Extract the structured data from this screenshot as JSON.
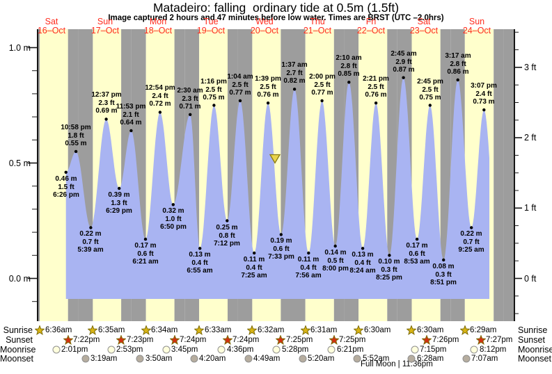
{
  "title": "Matadeiro: falling  ordinary tide at 0.5m (1.5ft)",
  "subtitle": "Image captured 2 hours and 47 minutes before low water. Times are BRST (UTC –2.0hrs)",
  "chart_data": {
    "type": "area",
    "title": "Matadeiro: falling  ordinary tide at 0.5m (1.5ft)",
    "x_categories": [
      {
        "dow": "Sat",
        "date": "16–Oct"
      },
      {
        "dow": "Sun",
        "date": "17–Oct"
      },
      {
        "dow": "Mon",
        "date": "18–Oct"
      },
      {
        "dow": "Tue",
        "date": "19–Oct"
      },
      {
        "dow": "Wed",
        "date": "20–Oct"
      },
      {
        "dow": "Thu",
        "date": "21–Oct"
      },
      {
        "dow": "Fri",
        "date": "22–Oct"
      },
      {
        "dow": "Sat",
        "date": "23–Oct"
      },
      {
        "dow": "Sun",
        "date": "24–Oct"
      }
    ],
    "y_axis_left": {
      "unit": "m",
      "tick_labels": [
        "1.0 m",
        "0.5 m",
        "0.0 m"
      ],
      "tick_values_m": [
        1.0,
        0.5,
        0.0
      ]
    },
    "y_axis_right": {
      "unit": "ft",
      "tick_labels": [
        "3 ft",
        "2 ft",
        "1 ft",
        "0 ft"
      ],
      "tick_values_ft": [
        3,
        2,
        1,
        0
      ]
    },
    "area_color": "#a9b4f2",
    "day_color": "#ffffcc",
    "night_color": "#9d9d9d",
    "tide_events": [
      {
        "day": 0,
        "time": "6:26 pm",
        "height_m": 0.46,
        "height_ft": 1.5,
        "type": "start"
      },
      {
        "day": 0,
        "time": "10:58 pm",
        "height_m": 0.55,
        "height_ft": 1.8,
        "type": "high"
      },
      {
        "day": 1,
        "time": "5:39 am",
        "height_m": 0.22,
        "height_ft": 0.7,
        "type": "low"
      },
      {
        "day": 1,
        "time": "12:37 pm",
        "height_m": 0.69,
        "height_ft": 2.3,
        "type": "high"
      },
      {
        "day": 1,
        "time": "6:29 pm",
        "height_m": 0.39,
        "height_ft": 1.3,
        "type": "low"
      },
      {
        "day": 1,
        "time": "11:53 pm",
        "height_m": 0.64,
        "height_ft": 2.1,
        "type": "high"
      },
      {
        "day": 2,
        "time": "6:21 am",
        "height_m": 0.17,
        "height_ft": 0.6,
        "type": "low"
      },
      {
        "day": 2,
        "time": "12:54 pm",
        "height_m": 0.72,
        "height_ft": 2.4,
        "type": "high"
      },
      {
        "day": 2,
        "time": "6:50 pm",
        "height_m": 0.32,
        "height_ft": 1.0,
        "type": "low"
      },
      {
        "day": 3,
        "time": "2:30 am",
        "height_m": 0.71,
        "height_ft": 2.3,
        "type": "high"
      },
      {
        "day": 3,
        "time": "6:55 am",
        "height_m": 0.13,
        "height_ft": 0.4,
        "type": "low"
      },
      {
        "day": 3,
        "time": "1:16 pm",
        "height_m": 0.75,
        "height_ft": 2.5,
        "type": "high"
      },
      {
        "day": 3,
        "time": "7:12 pm",
        "height_m": 0.25,
        "height_ft": 0.8,
        "type": "low"
      },
      {
        "day": 4,
        "time": "1:04 am",
        "height_m": 0.77,
        "height_ft": 2.5,
        "type": "high"
      },
      {
        "day": 4,
        "time": "7:25 am",
        "height_m": 0.11,
        "height_ft": 0.4,
        "type": "low"
      },
      {
        "day": 4,
        "time": "1:39 pm",
        "height_m": 0.76,
        "height_ft": 2.5,
        "type": "high"
      },
      {
        "day": 4,
        "time": "7:33 pm",
        "height_m": 0.19,
        "height_ft": 0.6,
        "type": "low"
      },
      {
        "day": 5,
        "time": "1:37 am",
        "height_m": 0.82,
        "height_ft": 2.7,
        "type": "high"
      },
      {
        "day": 5,
        "time": "7:56 am",
        "height_m": 0.11,
        "height_ft": 0.4,
        "type": "low"
      },
      {
        "day": 5,
        "time": "2:00 pm",
        "height_m": 0.77,
        "height_ft": 2.5,
        "type": "high"
      },
      {
        "day": 5,
        "time": "8:00 pm",
        "height_m": 0.14,
        "height_ft": 0.5,
        "type": "low"
      },
      {
        "day": 6,
        "time": "2:10 am",
        "height_m": 0.85,
        "height_ft": 2.8,
        "type": "high"
      },
      {
        "day": 6,
        "time": "8:24 am",
        "height_m": 0.13,
        "height_ft": 0.4,
        "type": "low"
      },
      {
        "day": 6,
        "time": "2:21 pm",
        "height_m": 0.76,
        "height_ft": 2.5,
        "type": "high"
      },
      {
        "day": 6,
        "time": "8:25 pm",
        "height_m": 0.1,
        "height_ft": 0.3,
        "type": "low"
      },
      {
        "day": 7,
        "time": "2:45 am",
        "height_m": 0.87,
        "height_ft": 2.9,
        "type": "high"
      },
      {
        "day": 7,
        "time": "8:53 am",
        "height_m": 0.17,
        "height_ft": 0.6,
        "type": "low"
      },
      {
        "day": 7,
        "time": "2:45 pm",
        "height_m": 0.75,
        "height_ft": 2.5,
        "type": "high"
      },
      {
        "day": 7,
        "time": "8:51 pm",
        "height_m": 0.08,
        "height_ft": 0.3,
        "type": "low"
      },
      {
        "day": 8,
        "time": "3:17 am",
        "height_m": 0.86,
        "height_ft": 2.8,
        "type": "high"
      },
      {
        "day": 8,
        "time": "9:25 am",
        "height_m": 0.22,
        "height_ft": 0.7,
        "type": "low"
      },
      {
        "day": 8,
        "time": "3:07 pm",
        "height_m": 0.73,
        "height_ft": 2.4,
        "type": "high"
      }
    ],
    "current_marker": {
      "height_m": 0.5,
      "day_index": 4,
      "hour": 16.77
    }
  },
  "astro": {
    "row_labels": [
      "Sunrise",
      "Sunset",
      "Moonrise",
      "Moonset"
    ],
    "sunrise": [
      {
        "day": 0,
        "time": "6:36am"
      },
      {
        "day": 1,
        "time": "6:35am"
      },
      {
        "day": 2,
        "time": "6:34am"
      },
      {
        "day": 3,
        "time": "6:33am"
      },
      {
        "day": 4,
        "time": "6:32am"
      },
      {
        "day": 5,
        "time": "6:31am"
      },
      {
        "day": 6,
        "time": "6:30am"
      },
      {
        "day": 7,
        "time": "6:30am"
      },
      {
        "day": 8,
        "time": "6:29am"
      }
    ],
    "sunset": [
      {
        "day": 0,
        "time": "7:22pm"
      },
      {
        "day": 1,
        "time": "7:23pm"
      },
      {
        "day": 2,
        "time": "7:24pm"
      },
      {
        "day": 3,
        "time": "7:24pm"
      },
      {
        "day": 4,
        "time": "7:25pm"
      },
      {
        "day": 5,
        "time": "7:25pm"
      },
      {
        "day": 6,
        "time": "7:26pm"
      },
      {
        "day": 7,
        "time": "7:27pm"
      }
    ],
    "moonrise": [
      {
        "day": 0,
        "time": "2:01pm"
      },
      {
        "day": 1,
        "time": "2:53pm"
      },
      {
        "day": 2,
        "time": "3:45pm"
      },
      {
        "day": 3,
        "time": "4:36pm"
      },
      {
        "day": 4,
        "time": "5:28pm"
      },
      {
        "day": 5,
        "time": "6:21pm"
      },
      {
        "day": 6,
        "time": "7:15pm"
      },
      {
        "day": 7,
        "time": "8:12pm"
      }
    ],
    "moonset": [
      {
        "day": 1,
        "time": "3:19am"
      },
      {
        "day": 2,
        "time": "3:50am"
      },
      {
        "day": 3,
        "time": "4:20am"
      },
      {
        "day": 4,
        "time": "4:49am"
      },
      {
        "day": 5,
        "time": "5:20am"
      },
      {
        "day": 6,
        "time": "5:52am"
      },
      {
        "day": 7,
        "time": "6:28am"
      },
      {
        "day": 8,
        "time": "7:07am"
      }
    ],
    "full_moon": "Full Moon | 11:36pm"
  },
  "colors": {
    "date_text": "#ff2b1d",
    "sunrise_star": "#d8b414",
    "sunset_star": "#d23012",
    "star_stroke": "#7d6c08",
    "moonrise_fill": "#ffffdd",
    "moonset_fill": "#b6ad9f",
    "moon_stroke": "#8f8f8f",
    "marker_fill": "#e9d44b",
    "marker_stroke": "#8a7a10",
    "axis": "#161616"
  }
}
